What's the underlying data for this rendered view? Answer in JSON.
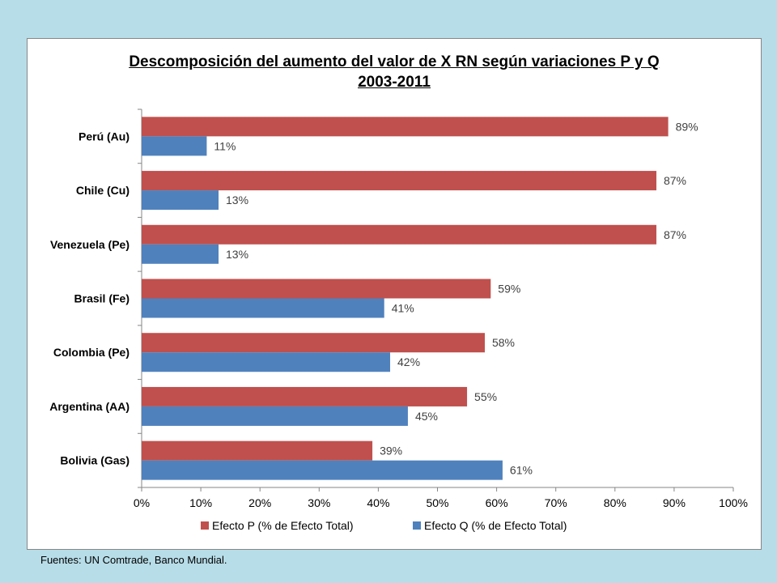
{
  "colors": {
    "background": "#b7dde8",
    "series_p": "#c0504d",
    "series_q": "#4f81bd"
  },
  "source_note": "Fuentes: UN Comtrade, Banco Mundial.",
  "chart_data": {
    "type": "bar",
    "orientation": "horizontal",
    "title": "Descomposición del aumento del valor de X RN según variaciones P y Q",
    "subtitle": "2003-2011",
    "categories": [
      "Perú (Au)",
      "Chile (Cu)",
      "Venezuela (Pe)",
      "Brasil (Fe)",
      "Colombia (Pe)",
      "Argentina (AA)",
      "Bolivia (Gas)"
    ],
    "series": [
      {
        "name": "Efecto P (% de Efecto Total)",
        "color": "#c0504d",
        "values": [
          89,
          87,
          87,
          59,
          58,
          55,
          39
        ],
        "labels": [
          "89%",
          "87%",
          "87%",
          "59%",
          "58%",
          "55%",
          "39%"
        ]
      },
      {
        "name": "Efecto Q (% de Efecto Total)",
        "color": "#4f81bd",
        "values": [
          11,
          13,
          13,
          41,
          42,
          45,
          61
        ],
        "labels": [
          "11%",
          "13%",
          "13%",
          "41%",
          "42%",
          "45%",
          "61%"
        ]
      }
    ],
    "xlim": [
      0,
      100
    ],
    "xticks": [
      "0%",
      "10%",
      "20%",
      "30%",
      "40%",
      "50%",
      "60%",
      "70%",
      "80%",
      "90%",
      "100%"
    ],
    "grid": false,
    "legend_position": "bottom"
  }
}
